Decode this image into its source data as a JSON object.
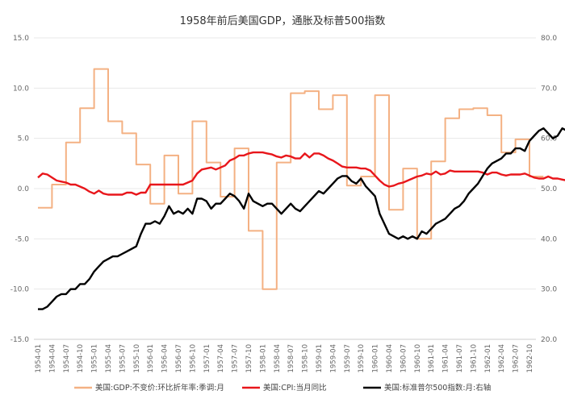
{
  "chart_data": {
    "type": "line",
    "title": "1958年前后美国GDP，通胀及标普500指数",
    "x_ticks": [
      "1954-01",
      "1954-04",
      "1954-07",
      "1954-10",
      "1955-01",
      "1955-04",
      "1955-07",
      "1955-10",
      "1956-01",
      "1956-04",
      "1956-07",
      "1956-10",
      "1957-01",
      "1957-04",
      "1957-07",
      "1957-10",
      "1958-01",
      "1958-04",
      "1958-07",
      "1958-10",
      "1959-01",
      "1959-04",
      "1959-07",
      "1959-10",
      "1960-01",
      "1960-04",
      "1960-07",
      "1960-10",
      "1961-01",
      "1961-04",
      "1961-07",
      "1961-10",
      "1962-01",
      "1962-04",
      "1962-07",
      "1962-10"
    ],
    "y_left": {
      "min": -15.0,
      "max": 15.0,
      "ticks": [
        "-15.0",
        "-10.0",
        "-5.0",
        "0.0",
        "5.0",
        "10.0",
        "15.0"
      ]
    },
    "y_right": {
      "min": 20.0,
      "max": 80.0,
      "ticks": [
        "20.0",
        "30.0",
        "40.0",
        "50.0",
        "60.0",
        "70.0",
        "80.0"
      ]
    },
    "legend_position": "bottom",
    "series": [
      {
        "name": "美国:GDP:不变价:环比折年率:季调:月",
        "axis": "left",
        "color": "#F4B183",
        "step": true,
        "quarters": [
          "1954-01",
          "1954-04",
          "1954-07",
          "1954-10",
          "1955-01",
          "1955-04",
          "1955-07",
          "1955-10",
          "1956-01",
          "1956-04",
          "1956-07",
          "1956-10",
          "1957-01",
          "1957-04",
          "1957-07",
          "1957-10",
          "1958-01",
          "1958-04",
          "1958-07",
          "1958-10",
          "1959-01",
          "1959-04",
          "1959-07",
          "1959-10",
          "1960-01",
          "1960-04",
          "1960-07",
          "1960-10",
          "1961-01",
          "1961-04",
          "1961-07",
          "1961-10",
          "1962-01",
          "1962-04",
          "1962-07",
          "1962-10"
        ],
        "values": [
          -1.9,
          0.4,
          4.6,
          8.0,
          11.9,
          6.7,
          5.5,
          2.4,
          -1.5,
          3.3,
          -0.5,
          6.7,
          2.6,
          -0.8,
          4.0,
          -4.2,
          -10.0,
          2.6,
          9.5,
          9.7,
          7.9,
          9.3,
          0.3,
          1.2,
          9.3,
          -2.1,
          2.0,
          -5.0,
          2.7,
          7.0,
          7.9,
          8.0,
          7.3,
          3.6,
          4.9,
          1.2
        ]
      },
      {
        "name": "美国:CPI:当月同比",
        "axis": "left",
        "color": "#E8161B",
        "x_start": "1954-01",
        "values": [
          1.1,
          1.5,
          1.4,
          1.1,
          0.8,
          0.7,
          0.6,
          0.4,
          0.4,
          0.2,
          0.0,
          -0.3,
          -0.5,
          -0.2,
          -0.5,
          -0.6,
          -0.6,
          -0.6,
          -0.6,
          -0.4,
          -0.4,
          -0.6,
          -0.4,
          -0.4,
          0.4,
          0.4,
          0.4,
          0.4,
          0.4,
          0.4,
          0.4,
          0.4,
          0.6,
          0.8,
          1.5,
          1.9,
          2.0,
          2.1,
          1.9,
          2.1,
          2.3,
          2.8,
          3.0,
          3.3,
          3.3,
          3.5,
          3.6,
          3.6,
          3.6,
          3.5,
          3.4,
          3.2,
          3.1,
          3.3,
          3.2,
          3.0,
          3.0,
          3.5,
          3.1,
          3.5,
          3.5,
          3.3,
          3.0,
          2.8,
          2.5,
          2.2,
          2.1,
          2.1,
          2.1,
          2.0,
          2.0,
          1.8,
          1.3,
          0.8,
          0.4,
          0.2,
          0.3,
          0.5,
          0.6,
          0.8,
          1.0,
          1.2,
          1.3,
          1.5,
          1.4,
          1.7,
          1.4,
          1.5,
          1.8,
          1.7,
          1.7,
          1.7,
          1.7,
          1.7,
          1.7,
          1.6,
          1.4,
          1.6,
          1.6,
          1.4,
          1.3,
          1.4,
          1.4,
          1.4,
          1.5,
          1.3,
          1.1,
          1.0,
          1.0,
          1.2,
          1.0,
          1.0,
          0.9,
          0.8,
          0.9,
          1.2,
          1.3,
          1.0,
          0.8,
          0.8,
          0.8,
          0.8,
          0.9,
          1.0,
          1.2,
          1.1,
          1.3,
          1.4,
          1.4,
          1.3,
          1.2,
          1.3,
          1.3,
          1.3,
          1.3,
          1.3,
          1.3,
          1.3,
          1.3,
          1.3,
          1.3,
          1.3,
          1.3,
          1.3
        ]
      },
      {
        "name": "美国:标准普尔500指数:月:右轴",
        "axis": "right",
        "color": "#000000",
        "x_start": "1954-01",
        "values": [
          26.0,
          26.0,
          26.5,
          27.5,
          28.5,
          29.0,
          29.0,
          30.0,
          30.0,
          31.0,
          31.0,
          32.0,
          33.5,
          34.5,
          35.5,
          36.0,
          36.5,
          36.5,
          37.0,
          37.5,
          38.0,
          38.5,
          41.0,
          43.0,
          43.0,
          43.5,
          43.0,
          44.5,
          46.5,
          45.0,
          45.5,
          45.0,
          46.0,
          45.0,
          48.0,
          48.0,
          47.5,
          46.0,
          47.0,
          47.0,
          48.0,
          49.0,
          48.5,
          47.5,
          46.0,
          49.0,
          47.5,
          47.0,
          46.5,
          47.0,
          47.0,
          46.0,
          45.0,
          46.0,
          47.0,
          46.0,
          45.5,
          46.5,
          47.5,
          48.5,
          49.5,
          49.0,
          50.0,
          51.0,
          52.0,
          52.5,
          52.5,
          51.5,
          51.0,
          52.0,
          50.5,
          49.5,
          48.5,
          45.0,
          43.0,
          41.0,
          40.5,
          40.0,
          40.5,
          40.0,
          40.5,
          40.0,
          41.5,
          41.0,
          42.0,
          43.0,
          43.5,
          44.0,
          45.0,
          46.0,
          46.5,
          47.5,
          49.0,
          50.0,
          51.0,
          52.5,
          54.0,
          55.0,
          55.5,
          56.0,
          57.0,
          57.0,
          58.0,
          58.0,
          57.5,
          59.5,
          60.5,
          61.5,
          62.0,
          61.0,
          60.0,
          60.5,
          62.0,
          61.5,
          60.5,
          59.0,
          58.5,
          58.0,
          57.5,
          57.0,
          56.5,
          56.0,
          55.0,
          57.0,
          58.0,
          59.0,
          60.0,
          60.5,
          61.5,
          63.0,
          63.5,
          64.5,
          66.5,
          67.0,
          67.5,
          68.0,
          68.5,
          69.5,
          70.0,
          71.0,
          71.5,
          72.0,
          71.0,
          70.5
        ]
      }
    ]
  }
}
